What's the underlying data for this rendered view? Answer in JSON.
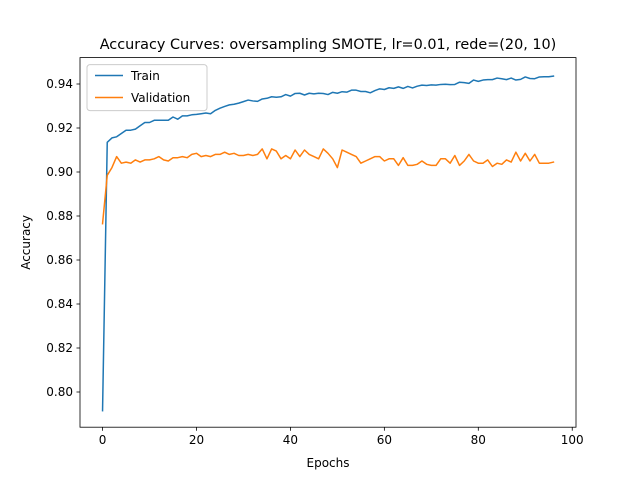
{
  "chart_data": {
    "type": "line",
    "title": "Accuracy Curves: oversampling SMOTE, lr=0.01, rede=(20, 10)",
    "xlabel": "Epochs",
    "ylabel": "Accuracy",
    "xlim": [
      -4.8,
      100.8
    ],
    "ylim": [
      0.784,
      0.952
    ],
    "xticks": [
      0,
      20,
      40,
      60,
      80,
      100
    ],
    "yticks": [
      0.8,
      0.82,
      0.84,
      0.86,
      0.88,
      0.9,
      0.92,
      0.94
    ],
    "xtick_labels": [
      "0",
      "20",
      "40",
      "60",
      "80",
      "100"
    ],
    "ytick_labels": [
      "0.80",
      "0.82",
      "0.84",
      "0.86",
      "0.88",
      "0.90",
      "0.92",
      "0.94"
    ],
    "grid": false,
    "legend_position": "upper-left",
    "series": [
      {
        "name": "Train",
        "color": "#1f77b4",
        "values": [
          0.7915,
          0.9135,
          0.9155,
          0.916,
          0.9175,
          0.919,
          0.919,
          0.9195,
          0.921,
          0.9225,
          0.9225,
          0.9235,
          0.9235,
          0.9235,
          0.9235,
          0.925,
          0.924,
          0.9255,
          0.9255,
          0.926,
          0.9262,
          0.9265,
          0.9268,
          0.9265,
          0.928,
          0.929,
          0.9298,
          0.9305,
          0.9308,
          0.9313,
          0.932,
          0.9327,
          0.9323,
          0.9321,
          0.9332,
          0.9335,
          0.9342,
          0.934,
          0.9342,
          0.9352,
          0.9345,
          0.9357,
          0.9358,
          0.935,
          0.9358,
          0.9355,
          0.9358,
          0.9357,
          0.9352,
          0.9362,
          0.9358,
          0.9365,
          0.9363,
          0.9372,
          0.9372,
          0.9366,
          0.9366,
          0.936,
          0.937,
          0.9378,
          0.9375,
          0.9383,
          0.938,
          0.9387,
          0.938,
          0.9389,
          0.9382,
          0.939,
          0.9395,
          0.9393,
          0.9396,
          0.9395,
          0.9398,
          0.9399,
          0.9397,
          0.9398,
          0.9408,
          0.9406,
          0.9403,
          0.9418,
          0.9412,
          0.9418,
          0.942,
          0.942,
          0.9427,
          0.9424,
          0.942,
          0.9427,
          0.9418,
          0.9421,
          0.9432,
          0.9425,
          0.9424,
          0.9432,
          0.9433,
          0.9433,
          0.9436
        ]
      },
      {
        "name": "Validation",
        "color": "#ff7f0e",
        "values": [
          0.8765,
          0.8985,
          0.902,
          0.907,
          0.904,
          0.9045,
          0.904,
          0.9055,
          0.9045,
          0.9055,
          0.9055,
          0.906,
          0.907,
          0.9055,
          0.905,
          0.9065,
          0.9065,
          0.907,
          0.9065,
          0.908,
          0.9085,
          0.907,
          0.9075,
          0.907,
          0.908,
          0.908,
          0.909,
          0.908,
          0.9085,
          0.9075,
          0.9075,
          0.908,
          0.9075,
          0.908,
          0.9105,
          0.906,
          0.9105,
          0.9095,
          0.906,
          0.9075,
          0.906,
          0.91,
          0.907,
          0.91,
          0.908,
          0.907,
          0.906,
          0.9105,
          0.9085,
          0.906,
          0.902,
          0.91,
          0.909,
          0.908,
          0.907,
          0.904,
          0.905,
          0.906,
          0.907,
          0.907,
          0.905,
          0.906,
          0.906,
          0.903,
          0.9065,
          0.903,
          0.903,
          0.9035,
          0.905,
          0.9035,
          0.903,
          0.903,
          0.906,
          0.906,
          0.904,
          0.9075,
          0.903,
          0.905,
          0.908,
          0.905,
          0.904,
          0.904,
          0.9055,
          0.9025,
          0.904,
          0.9035,
          0.9055,
          0.9045,
          0.909,
          0.905,
          0.9085,
          0.905,
          0.908,
          0.904,
          0.904,
          0.904,
          0.9045
        ]
      }
    ]
  }
}
